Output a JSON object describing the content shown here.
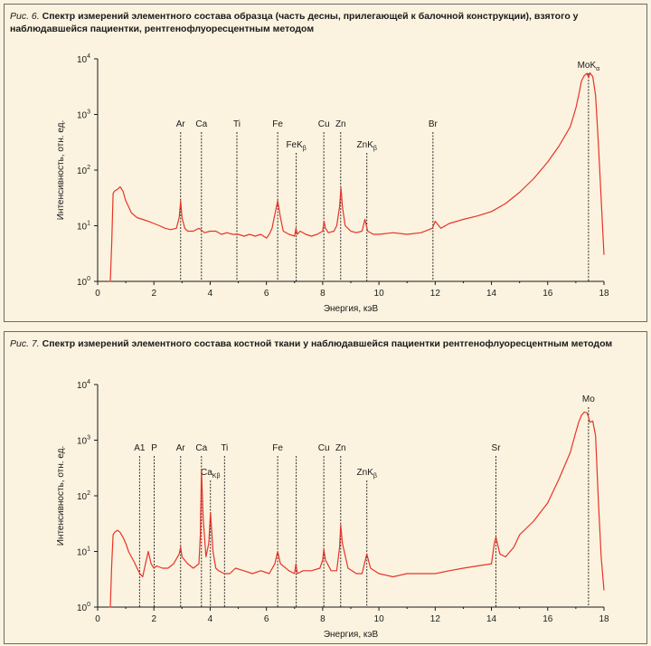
{
  "charts": [
    {
      "figure_label": "Рис. 6.",
      "caption": "Спектр измерений элементного состава образца (часть десны, прилегающей к балочной конструкции), взятого у наблюдавшейся пациентки, рентгенофлуоресцентным методом"
    },
    {
      "figure_label": "Рис. 7.",
      "caption": "Спектр измерений элементного состава костной ткани у наблюдавшейся пациентки рентгенофлуоресцентным методом"
    }
  ],
  "chart_data": [
    {
      "type": "line",
      "title": "Спектр измерений элементного состава образца (часть десны, прилегающей к балочной конструкции)",
      "xlabel": "Энергия, кэВ",
      "ylabel": "Интенсивность, отн. ед.",
      "xlim": [
        0,
        18
      ],
      "ylim": [
        1,
        10000
      ],
      "yscale": "log",
      "xticks": [
        0,
        2,
        4,
        6,
        8,
        10,
        12,
        14,
        16,
        18
      ],
      "yticks": [
        {
          "base": "10",
          "exp": "0"
        },
        {
          "base": "10",
          "exp": "1"
        },
        {
          "base": "10",
          "exp": "2"
        },
        {
          "base": "10",
          "exp": "3"
        },
        {
          "base": "10",
          "exp": "4"
        }
      ],
      "series": [
        {
          "name": "spectrum",
          "color": "#e8332a",
          "x": [
            0.4,
            0.45,
            0.5,
            0.55,
            0.6,
            0.7,
            0.8,
            0.9,
            1.0,
            1.1,
            1.2,
            1.4,
            1.6,
            1.8,
            2.0,
            2.2,
            2.4,
            2.6,
            2.8,
            2.9,
            2.95,
            3.0,
            3.1,
            3.2,
            3.4,
            3.6,
            3.8,
            4.0,
            4.2,
            4.4,
            4.6,
            4.8,
            5.0,
            5.2,
            5.4,
            5.6,
            5.8,
            6.0,
            6.1,
            6.2,
            6.3,
            6.4,
            6.5,
            6.6,
            6.8,
            7.0,
            7.05,
            7.1,
            7.2,
            7.4,
            7.6,
            7.8,
            8.0,
            8.05,
            8.1,
            8.2,
            8.4,
            8.5,
            8.6,
            8.65,
            8.7,
            8.8,
            9.0,
            9.2,
            9.4,
            9.5,
            9.6,
            9.8,
            10.0,
            10.5,
            11.0,
            11.5,
            11.9,
            12.0,
            12.2,
            12.5,
            13.0,
            13.5,
            14.0,
            14.5,
            15.0,
            15.5,
            16.0,
            16.4,
            16.8,
            17.0,
            17.1,
            17.2,
            17.3,
            17.4,
            17.45,
            17.5,
            17.6,
            17.7,
            17.8,
            17.9,
            18.0
          ],
          "values": [
            1,
            1,
            5,
            38,
            42,
            45,
            50,
            42,
            28,
            22,
            17,
            14,
            13,
            12,
            11,
            10,
            9,
            8.5,
            9,
            14,
            28,
            14,
            9,
            8,
            8,
            9,
            7.5,
            8,
            8,
            7,
            7.5,
            7,
            7,
            6.5,
            7,
            6.5,
            7,
            6,
            7,
            9,
            16,
            28,
            14,
            8,
            7,
            6.5,
            9,
            7,
            8,
            7,
            6.5,
            7,
            8,
            12,
            9,
            7.5,
            8,
            10,
            22,
            48,
            22,
            10,
            8,
            7.5,
            8,
            13,
            8,
            7,
            7,
            7.5,
            7,
            7.5,
            9,
            12,
            9,
            11,
            13,
            15,
            18,
            25,
            40,
            70,
            140,
            270,
            600,
            1300,
            2200,
            4000,
            5000,
            5500,
            4600,
            5600,
            4800,
            2200,
            300,
            30,
            3
          ]
        }
      ],
      "element_markers": [
        {
          "label": "Ar",
          "sub": "",
          "x": 2.95
        },
        {
          "label": "Ca",
          "sub": "",
          "x": 3.69
        },
        {
          "label": "Ti",
          "sub": "",
          "x": 4.95
        },
        {
          "label": "Fe",
          "sub": "",
          "x": 6.4
        },
        {
          "label": "FeK",
          "sub": "β",
          "x": 7.06
        },
        {
          "label": "Cu",
          "sub": "",
          "x": 8.04
        },
        {
          "label": "Zn",
          "sub": "",
          "x": 8.64
        },
        {
          "label": "ZnK",
          "sub": "β",
          "x": 9.57
        },
        {
          "label": "Br",
          "sub": "",
          "x": 11.92
        },
        {
          "label": "MoK",
          "sub": "α",
          "x": 17.45
        }
      ]
    },
    {
      "type": "line",
      "title": "Спектр измерений элементного состава костной ткани",
      "xlabel": "Энергия, кэВ",
      "ylabel": "Интенсивность, отн. ед.",
      "xlim": [
        0,
        18
      ],
      "ylim": [
        1,
        10000
      ],
      "yscale": "log",
      "xticks": [
        0,
        2,
        4,
        6,
        8,
        10,
        12,
        14,
        16,
        18
      ],
      "yticks": [
        {
          "base": "10",
          "exp": "0"
        },
        {
          "base": "10",
          "exp": "1"
        },
        {
          "base": "10",
          "exp": "2"
        },
        {
          "base": "10",
          "exp": "3"
        },
        {
          "base": "10",
          "exp": "4"
        }
      ],
      "series": [
        {
          "name": "spectrum",
          "color": "#e8332a",
          "x": [
            0.4,
            0.45,
            0.5,
            0.55,
            0.6,
            0.7,
            0.8,
            0.9,
            1.0,
            1.1,
            1.2,
            1.3,
            1.4,
            1.5,
            1.6,
            1.7,
            1.8,
            1.9,
            2.0,
            2.1,
            2.3,
            2.5,
            2.7,
            2.9,
            2.95,
            3.0,
            3.2,
            3.4,
            3.6,
            3.65,
            3.69,
            3.75,
            3.85,
            3.95,
            4.01,
            4.1,
            4.2,
            4.3,
            4.5,
            4.7,
            4.9,
            5.2,
            5.5,
            5.8,
            6.1,
            6.3,
            6.4,
            6.5,
            6.8,
            7.0,
            7.05,
            7.1,
            7.3,
            7.6,
            7.9,
            8.0,
            8.04,
            8.1,
            8.3,
            8.5,
            8.6,
            8.64,
            8.7,
            8.9,
            9.2,
            9.4,
            9.57,
            9.7,
            10.0,
            10.5,
            11.0,
            11.5,
            12.0,
            12.5,
            13.0,
            13.5,
            14.0,
            14.1,
            14.16,
            14.3,
            14.5,
            14.8,
            15.0,
            15.5,
            16.0,
            16.4,
            16.8,
            17.0,
            17.1,
            17.2,
            17.3,
            17.4,
            17.45,
            17.5,
            17.6,
            17.7,
            17.8,
            17.9,
            18.0
          ],
          "values": [
            1,
            1,
            6,
            20,
            22,
            24,
            22,
            18,
            14,
            10,
            8,
            6.5,
            5,
            4,
            3.5,
            6,
            10,
            6,
            5,
            5.5,
            5,
            5,
            6,
            9,
            12,
            8,
            6,
            5,
            6,
            20,
            300,
            40,
            8,
            14,
            50,
            10,
            5,
            4.5,
            4,
            4,
            5,
            4.5,
            4,
            4.5,
            4,
            6,
            10,
            6,
            4.5,
            4,
            6,
            4,
            4.5,
            4.5,
            5,
            7,
            11,
            7,
            4.5,
            4.5,
            12,
            30,
            14,
            5,
            4,
            4,
            9,
            5,
            4,
            3.5,
            4,
            4,
            4,
            4.5,
            5,
            5.5,
            6,
            14,
            18,
            9,
            8,
            12,
            20,
            35,
            75,
            200,
            600,
            1400,
            2100,
            2800,
            3200,
            3100,
            2600,
            2100,
            2200,
            1200,
            80,
            8,
            2
          ]
        }
      ],
      "element_markers": [
        {
          "label": "A1",
          "sub": "",
          "x": 1.49
        },
        {
          "label": "P",
          "sub": "",
          "x": 2.01
        },
        {
          "label": "Ar",
          "sub": "",
          "x": 2.95
        },
        {
          "label": "Ca",
          "sub": "",
          "x": 3.69
        },
        {
          "label": "Ca",
          "sub": "Kβ",
          "x": 4.01
        },
        {
          "label": "Ti",
          "sub": "",
          "x": 4.51
        },
        {
          "label": "Fe",
          "sub": "",
          "x": 6.4
        },
        {
          "label": "",
          "sub": "",
          "x": 7.06
        },
        {
          "label": "Cu",
          "sub": "",
          "x": 8.04
        },
        {
          "label": "Zn",
          "sub": "",
          "x": 8.64
        },
        {
          "label": "ZnK",
          "sub": "β",
          "x": 9.57
        },
        {
          "label": "Sr",
          "sub": "",
          "x": 14.16
        },
        {
          "label": "Mo",
          "sub": "",
          "x": 17.45
        }
      ]
    }
  ]
}
